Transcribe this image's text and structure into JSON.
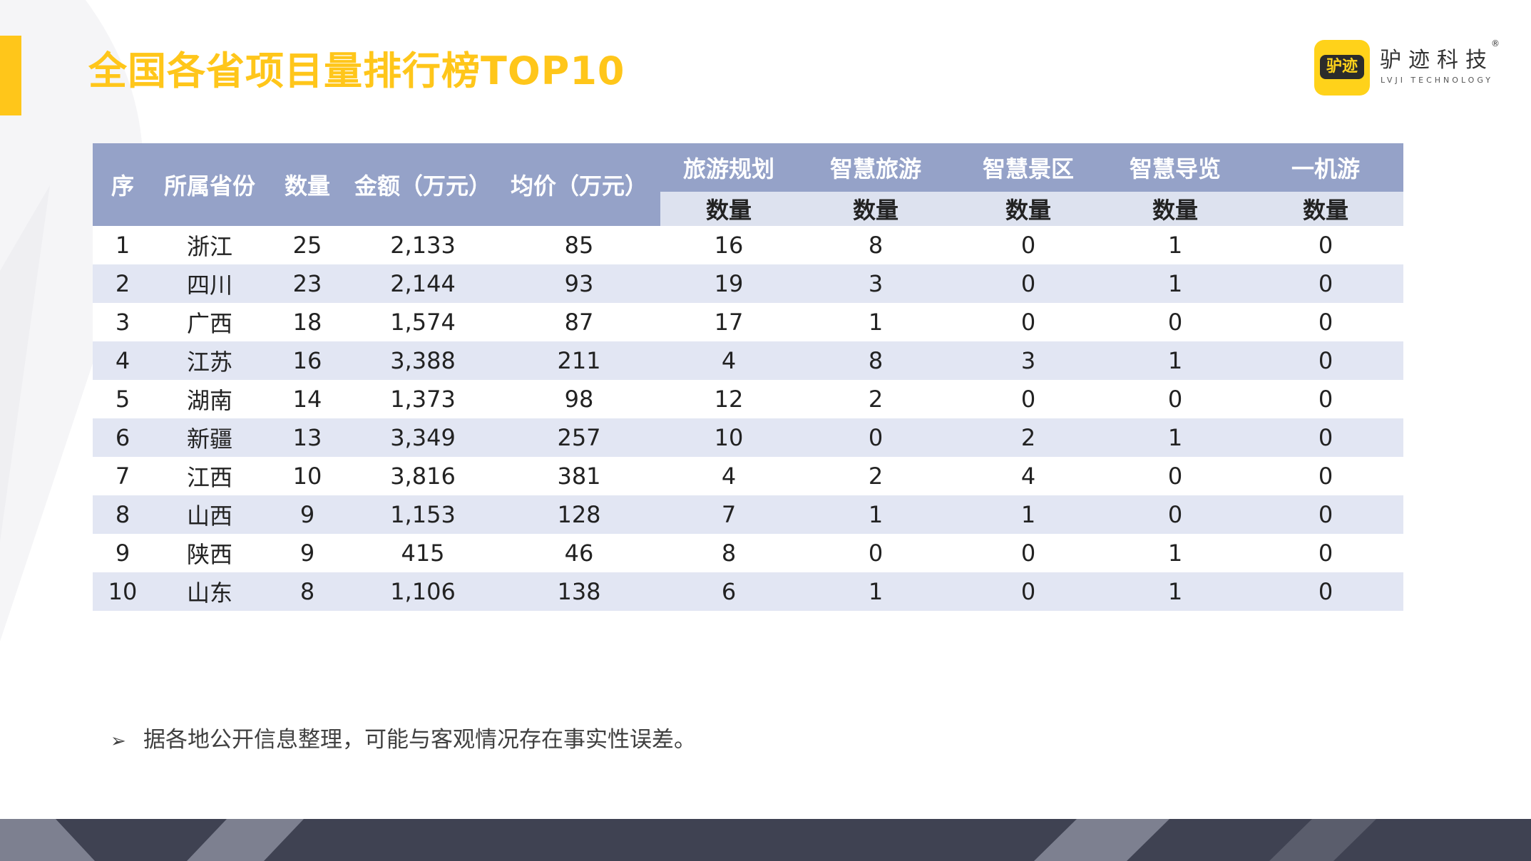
{
  "title": "全国各省项目量排行榜TOP10",
  "logo": {
    "badge_text": "驴迹",
    "name_cn": "驴迹科技",
    "name_en": "LVJI TECHNOLOGY",
    "reg_mark": "®"
  },
  "table": {
    "headers": {
      "rank": "序",
      "province": "所属省份",
      "count": "数量",
      "amount": "金额（万元）",
      "avg_price": "均价（万元）",
      "categories": [
        "旅游规划",
        "智慧旅游",
        "智慧景区",
        "智慧导览",
        "一机游"
      ],
      "sub_label": "数量"
    },
    "rows": [
      {
        "rank": "1",
        "province": "浙江",
        "count": "25",
        "amount": "2,133",
        "avg": "85",
        "c1": "16",
        "c2": "8",
        "c3": "0",
        "c4": "1",
        "c5": "0"
      },
      {
        "rank": "2",
        "province": "四川",
        "count": "23",
        "amount": "2,144",
        "avg": "93",
        "c1": "19",
        "c2": "3",
        "c3": "0",
        "c4": "1",
        "c5": "0"
      },
      {
        "rank": "3",
        "province": "广西",
        "count": "18",
        "amount": "1,574",
        "avg": "87",
        "c1": "17",
        "c2": "1",
        "c3": "0",
        "c4": "0",
        "c5": "0"
      },
      {
        "rank": "4",
        "province": "江苏",
        "count": "16",
        "amount": "3,388",
        "avg": "211",
        "c1": "4",
        "c2": "8",
        "c3": "3",
        "c4": "1",
        "c5": "0"
      },
      {
        "rank": "5",
        "province": "湖南",
        "count": "14",
        "amount": "1,373",
        "avg": "98",
        "c1": "12",
        "c2": "2",
        "c3": "0",
        "c4": "0",
        "c5": "0"
      },
      {
        "rank": "6",
        "province": "新疆",
        "count": "13",
        "amount": "3,349",
        "avg": "257",
        "c1": "10",
        "c2": "0",
        "c3": "2",
        "c4": "1",
        "c5": "0"
      },
      {
        "rank": "7",
        "province": "江西",
        "count": "10",
        "amount": "3,816",
        "avg": "381",
        "c1": "4",
        "c2": "2",
        "c3": "4",
        "c4": "0",
        "c5": "0"
      },
      {
        "rank": "8",
        "province": "山西",
        "count": "9",
        "amount": "1,153",
        "avg": "128",
        "c1": "7",
        "c2": "1",
        "c3": "1",
        "c4": "0",
        "c5": "0"
      },
      {
        "rank": "9",
        "province": "陕西",
        "count": "9",
        "amount": "415",
        "avg": "46",
        "c1": "8",
        "c2": "0",
        "c3": "0",
        "c4": "1",
        "c5": "0"
      },
      {
        "rank": "10",
        "province": "山东",
        "count": "8",
        "amount": "1,106",
        "avg": "138",
        "c1": "6",
        "c2": "1",
        "c3": "0",
        "c4": "1",
        "c5": "0"
      }
    ]
  },
  "footnote": {
    "bullet": "➢",
    "text": "据各地公开信息整理，可能与客观情况存在事实性误差。"
  },
  "colors": {
    "accent": "#FFC61A",
    "header_bg": "#95A2C8",
    "subheader_bg": "#DDE2EF",
    "row_alt_bg": "#E2E6F3",
    "footer_dark": "#3F4252",
    "footer_light": "#7D8090"
  }
}
